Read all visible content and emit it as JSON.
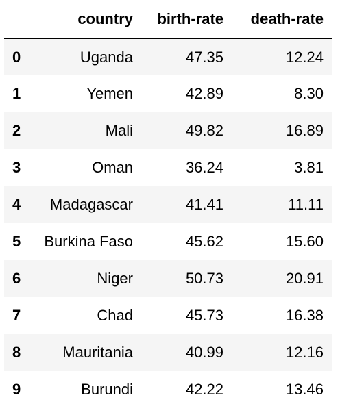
{
  "table": {
    "index_header": "",
    "columns": [
      "country",
      "birth-rate",
      "death-rate"
    ],
    "rows": [
      {
        "index": "0",
        "country": "Uganda",
        "birth_rate": "47.35",
        "death_rate": "12.24"
      },
      {
        "index": "1",
        "country": "Yemen",
        "birth_rate": "42.89",
        "death_rate": "8.30"
      },
      {
        "index": "2",
        "country": "Mali",
        "birth_rate": "49.82",
        "death_rate": "16.89"
      },
      {
        "index": "3",
        "country": "Oman",
        "birth_rate": "36.24",
        "death_rate": "3.81"
      },
      {
        "index": "4",
        "country": "Madagascar",
        "birth_rate": "41.41",
        "death_rate": "11.11"
      },
      {
        "index": "5",
        "country": "Burkina Faso",
        "birth_rate": "45.62",
        "death_rate": "15.60"
      },
      {
        "index": "6",
        "country": "Niger",
        "birth_rate": "50.73",
        "death_rate": "20.91"
      },
      {
        "index": "7",
        "country": "Chad",
        "birth_rate": "45.73",
        "death_rate": "16.38"
      },
      {
        "index": "8",
        "country": "Mauritania",
        "birth_rate": "40.99",
        "death_rate": "12.16"
      },
      {
        "index": "9",
        "country": "Burundi",
        "birth_rate": "42.22",
        "death_rate": "13.46"
      }
    ]
  },
  "colors": {
    "stripe": "#f5f5f5",
    "header_rule": "#000000"
  }
}
